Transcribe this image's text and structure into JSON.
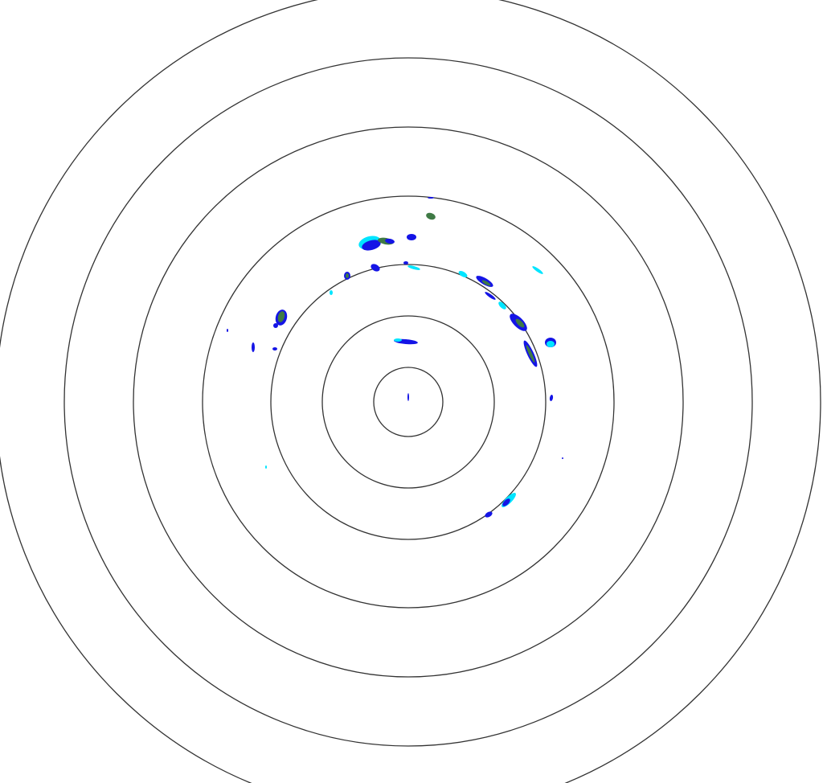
{
  "display": {
    "type": "radar-reflectivity-ppi",
    "range_ring_count": 7,
    "colors": {
      "background": "#ffffff",
      "ring": "#333333",
      "echo_light": "#00e5ff",
      "echo_medium": "#1414e6",
      "echo_strong": "#3f7a45"
    }
  }
}
